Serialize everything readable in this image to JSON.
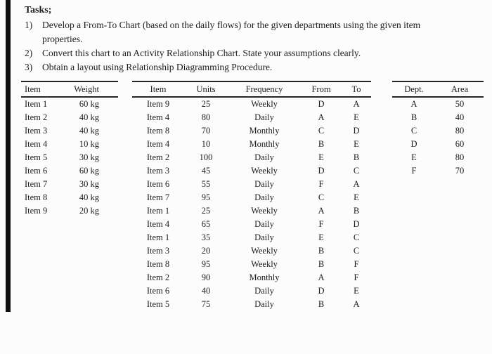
{
  "tasks": {
    "title": "Tasks;",
    "items": [
      {
        "num": "1)",
        "text": "Develop a From-To Chart (based on the daily flows) for the given departments using the given item properties."
      },
      {
        "num": "2)",
        "text": "Convert this chart to an Activity Relationship Chart. State your assumptions clearly."
      },
      {
        "num": "3)",
        "text": "Obtain a layout using Relationship Diagramming Procedure."
      }
    ]
  },
  "item_weight_table": {
    "headers": [
      "Item",
      "Weight"
    ],
    "rows": [
      [
        "Item 1",
        "60 kg"
      ],
      [
        "Item 2",
        "40 kg"
      ],
      [
        "Item 3",
        "40 kg"
      ],
      [
        "Item 4",
        "10 kg"
      ],
      [
        "Item 5",
        "30 kg"
      ],
      [
        "Item 6",
        "60 kg"
      ],
      [
        "Item 7",
        "30 kg"
      ],
      [
        "Item 8",
        "40 kg"
      ],
      [
        "Item 9",
        "20 kg"
      ]
    ]
  },
  "flow_table": {
    "headers": [
      "Item",
      "Units",
      "Frequency",
      "From",
      "To"
    ],
    "rows": [
      [
        "Item 9",
        "25",
        "Weekly",
        "D",
        "A"
      ],
      [
        "Item 4",
        "80",
        "Daily",
        "A",
        "E"
      ],
      [
        "Item 8",
        "70",
        "Monthly",
        "C",
        "D"
      ],
      [
        "Item 4",
        "10",
        "Monthly",
        "B",
        "E"
      ],
      [
        "Item 2",
        "100",
        "Daily",
        "E",
        "B"
      ],
      [
        "Item 3",
        "45",
        "Weekly",
        "D",
        "C"
      ],
      [
        "Item 6",
        "55",
        "Daily",
        "F",
        "A"
      ],
      [
        "Item 7",
        "95",
        "Daily",
        "C",
        "E"
      ],
      [
        "Item 1",
        "25",
        "Weekly",
        "A",
        "B"
      ],
      [
        "Item 4",
        "65",
        "Daily",
        "F",
        "D"
      ],
      [
        "Item 1",
        "35",
        "Daily",
        "E",
        "C"
      ],
      [
        "Item 3",
        "20",
        "Weekly",
        "B",
        "C"
      ],
      [
        "Item 8",
        "95",
        "Weekly",
        "B",
        "F"
      ],
      [
        "Item 2",
        "90",
        "Monthly",
        "A",
        "F"
      ],
      [
        "Item 6",
        "40",
        "Daily",
        "D",
        "E"
      ],
      [
        "Item 5",
        "75",
        "Daily",
        "B",
        "A"
      ]
    ]
  },
  "dept_area_table": {
    "headers": [
      "Dept.",
      "Area"
    ],
    "rows": [
      [
        "A",
        "50"
      ],
      [
        "B",
        "40"
      ],
      [
        "C",
        "80"
      ],
      [
        "D",
        "60"
      ],
      [
        "E",
        "80"
      ],
      [
        "F",
        "70"
      ]
    ]
  }
}
